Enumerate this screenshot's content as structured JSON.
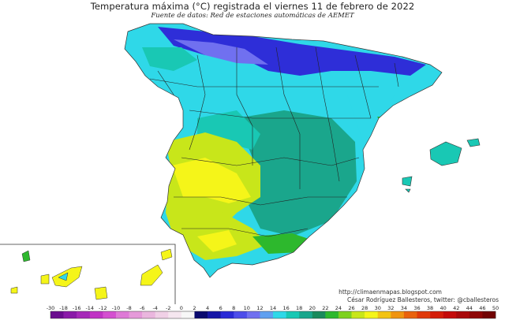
{
  "title": "Temperatura máxima (°C) registrada el viernes 11 de febrero de 2022",
  "subtitle": "Fuente de datos: Red de estaciones automáticas de AEMET",
  "credits": {
    "url": "http://climaenmapas.blogspot.com",
    "author": "César Rodríguez Ballesteros, twitter: @cballesteros"
  },
  "legend": {
    "ticks": [
      "-30",
      "-18",
      "-16",
      "-14",
      "-12",
      "-10",
      "-8",
      "-6",
      "-4",
      "-2",
      "0",
      "2",
      "4",
      "6",
      "8",
      "10",
      "12",
      "14",
      "16",
      "18",
      "20",
      "22",
      "24",
      "26",
      "28",
      "30",
      "32",
      "34",
      "36",
      "38",
      "40",
      "42",
      "44",
      "46",
      "50"
    ],
    "colors": [
      "#6a0d8e",
      "#8a1aa8",
      "#a629b8",
      "#c034c4",
      "#d44fd0",
      "#de7ad6",
      "#e59ad9",
      "#eab6de",
      "#f0d0e6",
      "#f5e6ef",
      "#f7f7f7",
      "#0a0a6e",
      "#1616a6",
      "#2a2ad6",
      "#4d4dea",
      "#7070f0",
      "#5fa0f0",
      "#2fd8e8",
      "#19c8b4",
      "#1aa68c",
      "#1a8a5c",
      "#2db82d",
      "#7dd11f",
      "#c8e61a",
      "#f5f519",
      "#f2c314",
      "#ef9410",
      "#e9620d",
      "#e03a0a",
      "#d41d0a",
      "#c40a0a",
      "#a8080a",
      "#8e0606",
      "#720404"
    ]
  },
  "colors": {
    "sea": "#ffffff",
    "border": "#222222",
    "cold_north": "#2e2ed8",
    "cool": "#2fd8e8",
    "teal": "#1aa68c",
    "warm_green": "#c8e61a",
    "yellow": "#f5f519"
  }
}
